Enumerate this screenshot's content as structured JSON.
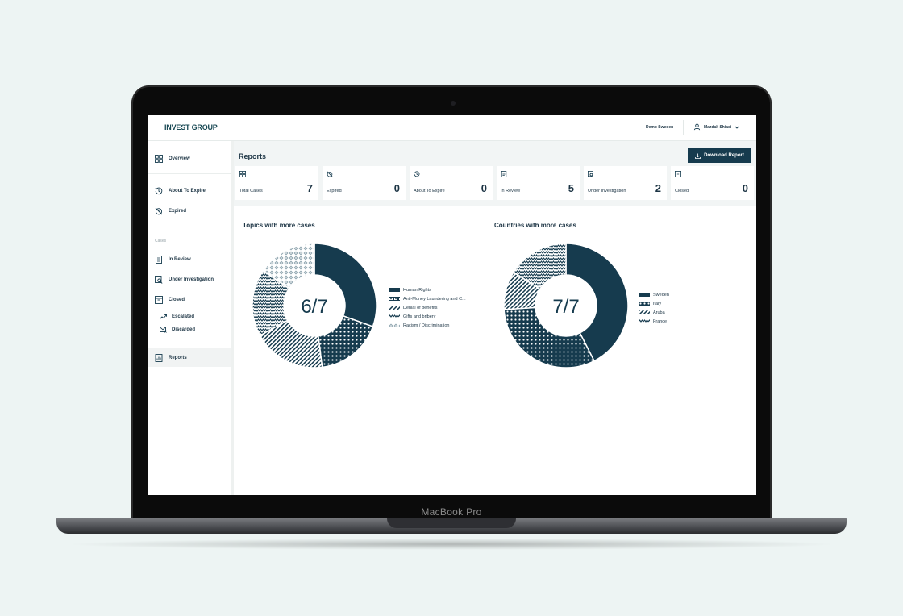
{
  "laptop_label": "MacBook Pro",
  "header": {
    "logo": "INVEST GROUP",
    "organization": "Demo Sweden",
    "user_name": "Mazdak Shiasi"
  },
  "sidebar": {
    "overview": "Overview",
    "about_to_expire": "About To Expire",
    "expired": "Expired",
    "cases_section": "Cases",
    "in_review": "In Review",
    "under_investigation": "Under Investigation",
    "closed": "Closed",
    "escalated": "Escalated",
    "discarded": "Discarded",
    "reports": "Reports"
  },
  "main": {
    "title": "Reports",
    "download_button": "Download Report"
  },
  "stats": [
    {
      "label": "Total Cases",
      "value": "7",
      "icon": "grid-icon"
    },
    {
      "label": "Expired",
      "value": "0",
      "icon": "expired-icon"
    },
    {
      "label": "About To Expire",
      "value": "0",
      "icon": "history-icon"
    },
    {
      "label": "In Review",
      "value": "5",
      "icon": "document-icon"
    },
    {
      "label": "Under Investigation",
      "value": "2",
      "icon": "investigation-icon"
    },
    {
      "label": "Closed",
      "value": "0",
      "icon": "archive-icon"
    }
  ],
  "colors": {
    "primary": "#163b4e",
    "background": "#f2f5f5",
    "page": "#edf4f3"
  },
  "chart_data": [
    {
      "type": "pie",
      "title": "Topics with more cases",
      "center_label": "6/7",
      "categories": [
        "Human Rights",
        "Anti-Money Laundering and C...",
        "Denial of benefits",
        "Gifts and bribery",
        "Racism / Discrimination"
      ],
      "values": [
        30.5,
        17.5,
        19,
        17.5,
        15.5
      ]
    },
    {
      "type": "pie",
      "title": "Countries with more cases",
      "center_label": "7/7",
      "categories": [
        "Sweden",
        "Italy",
        "Aruba",
        "France"
      ],
      "values": [
        42.5,
        31.5,
        10,
        16
      ]
    }
  ]
}
